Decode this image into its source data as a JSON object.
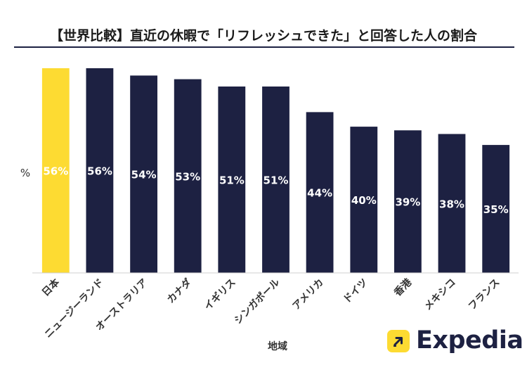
{
  "chart_data": {
    "type": "bar",
    "title": "【世界比較】直近の休暇で「リフレッシュできた」と回答した人の割合",
    "xlabel": "地域",
    "ylabel": "%",
    "ylim": [
      0,
      56
    ],
    "grid": false,
    "legend": "none",
    "categories": [
      "日本",
      "ニュージーランド",
      "オーストラリア",
      "カナダ",
      "イギリス",
      "シンガポール",
      "アメリカ",
      "ドイツ",
      "香港",
      "メキシコ",
      "フランス"
    ],
    "values": [
      56,
      56,
      54,
      53,
      51,
      51,
      44,
      40,
      39,
      38,
      35
    ],
    "data_labels": [
      "56%",
      "56%",
      "54%",
      "53%",
      "51%",
      "51%",
      "44%",
      "40%",
      "39%",
      "38%",
      "35%"
    ],
    "highlight_index": 0,
    "colors": {
      "highlight": "#fddb32",
      "default": "#1d2142",
      "label": "#ffffff",
      "axis": "#cfcfcf"
    }
  },
  "logo": {
    "name": "Expedia",
    "icon": "arrow-up-right-icon",
    "mark_color": "#fddb32"
  }
}
